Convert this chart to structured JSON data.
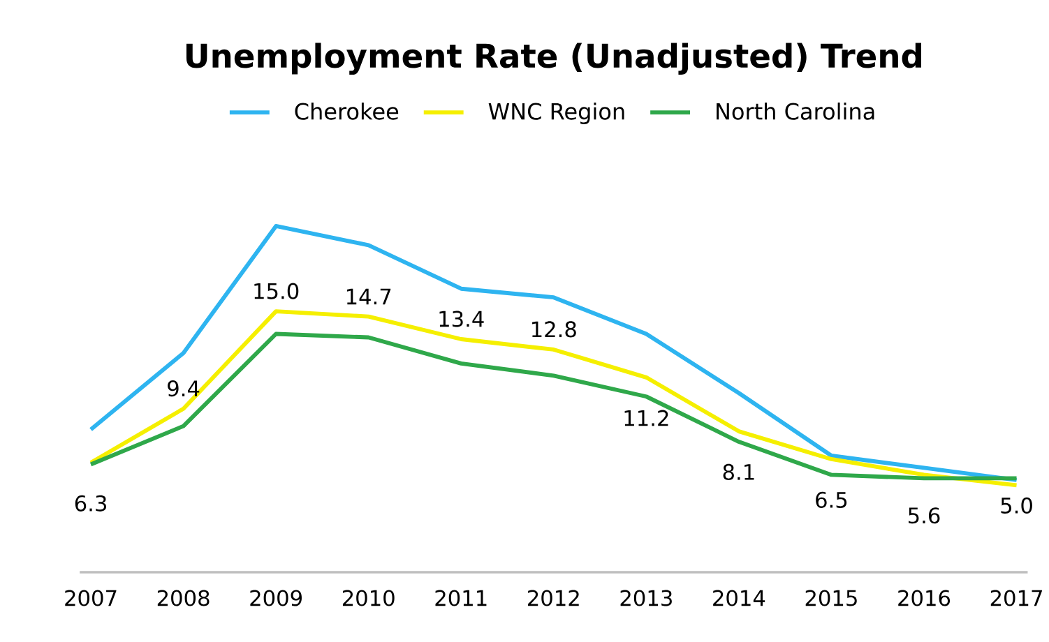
{
  "chart_data": {
    "type": "line",
    "title": "Unemployment Rate (Unadjusted) Trend",
    "categories": [
      "2007",
      "2008",
      "2009",
      "2010",
      "2011",
      "2012",
      "2013",
      "2014",
      "2015",
      "2016",
      "2017"
    ],
    "series": [
      {
        "name": "Cherokee",
        "color": "#2eb4f0",
        "values": [
          8.2,
          12.6,
          19.9,
          18.8,
          16.3,
          15.8,
          13.7,
          10.3,
          6.7,
          6.0,
          5.3
        ]
      },
      {
        "name": "WNC Region",
        "color": "#f5ef00",
        "values": [
          6.3,
          9.4,
          15.0,
          14.7,
          13.4,
          12.8,
          11.2,
          8.1,
          6.5,
          5.6,
          5.0
        ],
        "value_labels": [
          "6.3",
          "9.4",
          "15.0",
          "14.7",
          "13.4",
          "12.8",
          "11.2",
          "8.1",
          "6.5",
          "5.6",
          "5.0"
        ]
      },
      {
        "name": "North Carolina",
        "color": "#2fa84a",
        "values": [
          6.2,
          8.4,
          13.7,
          13.5,
          12.0,
          11.3,
          10.1,
          7.5,
          5.6,
          5.4,
          5.4
        ]
      }
    ],
    "legend": "top",
    "grid": false,
    "marker": "none",
    "line_style": "solid"
  }
}
